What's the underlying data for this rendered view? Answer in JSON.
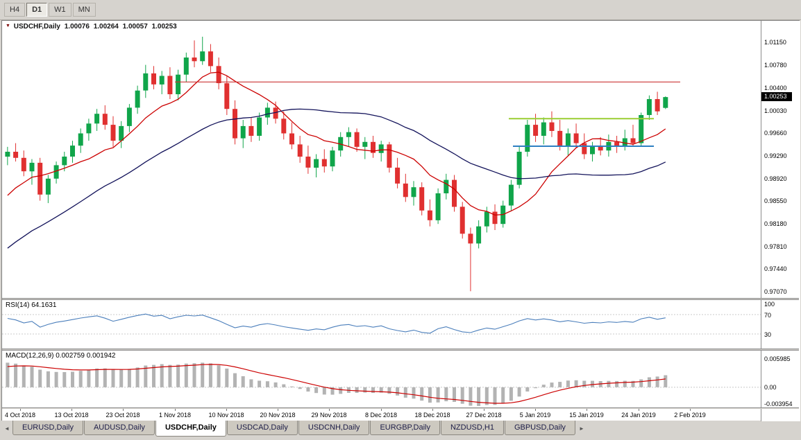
{
  "toolbar": {
    "timeframes": [
      {
        "label": "H4",
        "active": false
      },
      {
        "label": "D1",
        "active": true
      },
      {
        "label": "W1",
        "active": false
      },
      {
        "label": "MN",
        "active": false
      }
    ]
  },
  "chart": {
    "dropdown_icon": "▼",
    "symbol_label": "USDCHF,Daily",
    "open": "1.00076",
    "high": "1.00264",
    "low": "1.00057",
    "close": "1.00253",
    "price_badge": "1.00253"
  },
  "chart_data": {
    "type": "candlestick",
    "title": "USDCHF,Daily",
    "x_labels": [
      "4 Oct 2018",
      "13 Oct 2018",
      "23 Oct 2018",
      "1 Nov 2018",
      "10 Nov 2018",
      "20 Nov 2018",
      "29 Nov 2018",
      "8 Dec 2018",
      "18 Dec 2018",
      "27 Dec 2018",
      "5 Jan 2019",
      "15 Jan 2019",
      "24 Jan 2019",
      "2 Feb 2019"
    ],
    "y_tick_labels": [
      "1.01150",
      "1.00780",
      "1.00400",
      "1.00030",
      "0.99660",
      "0.99290",
      "0.98920",
      "0.98550",
      "0.98180",
      "0.97810",
      "0.97440",
      "0.97070"
    ],
    "price_range": [
      0.9697,
      1.015
    ],
    "pre_close": 0.9925,
    "candles": [
      [
        0.9928,
        0.9944,
        0.9914,
        0.9936
      ],
      [
        0.9936,
        0.995,
        0.992,
        0.9926
      ],
      [
        0.9926,
        0.9938,
        0.9896,
        0.9904
      ],
      [
        0.9904,
        0.9924,
        0.9882,
        0.9918
      ],
      [
        0.9918,
        0.9926,
        0.9856,
        0.9866
      ],
      [
        0.9866,
        0.9898,
        0.9852,
        0.9892
      ],
      [
        0.9892,
        0.992,
        0.9884,
        0.9914
      ],
      [
        0.9914,
        0.9936,
        0.9904,
        0.9928
      ],
      [
        0.9928,
        0.9954,
        0.9918,
        0.9946
      ],
      [
        0.9946,
        0.9974,
        0.9934,
        0.9966
      ],
      [
        0.9966,
        0.999,
        0.9954,
        0.9982
      ],
      [
        0.9982,
        1.0006,
        0.997,
        0.9998
      ],
      [
        0.9998,
        1.0012,
        0.9972,
        0.998
      ],
      [
        0.998,
        0.9994,
        0.9944,
        0.9954
      ],
      [
        0.9954,
        0.9986,
        0.9942,
        0.9978
      ],
      [
        0.9978,
        1.0014,
        0.9968,
        1.0008
      ],
      [
        1.0008,
        1.0044,
        0.9998,
        1.0036
      ],
      [
        1.0036,
        1.0078,
        1.0024,
        1.0064
      ],
      [
        1.0064,
        1.0076,
        1.0038,
        1.0046
      ],
      [
        1.0046,
        1.0068,
        1.003,
        1.006
      ],
      [
        1.006,
        1.0074,
        1.0022,
        1.003
      ],
      [
        1.003,
        1.007,
        1.002,
        1.0062
      ],
      [
        1.0062,
        1.0098,
        1.005,
        1.009
      ],
      [
        1.009,
        1.0118,
        1.0074,
        1.0084
      ],
      [
        1.0084,
        1.0124,
        1.0078,
        1.01
      ],
      [
        1.01,
        1.0112,
        1.0066,
        1.0076
      ],
      [
        1.0076,
        1.009,
        1.0038,
        1.0048
      ],
      [
        1.0048,
        1.006,
        0.9996,
        1.0006
      ],
      [
        1.0006,
        1.002,
        0.9948,
        0.9958
      ],
      [
        0.9958,
        0.9988,
        0.9942,
        0.9978
      ],
      [
        0.9978,
        0.9992,
        0.9952,
        0.9962
      ],
      [
        0.9962,
        1.0,
        0.9954,
        0.9992
      ],
      [
        0.9992,
        1.0016,
        0.998,
        1.0008
      ],
      [
        1.0008,
        1.0018,
        0.9982,
        0.999
      ],
      [
        0.999,
        1.0002,
        0.9956,
        0.9966
      ],
      [
        0.9966,
        0.9984,
        0.994,
        0.9948
      ],
      [
        0.9948,
        0.9962,
        0.9918,
        0.9928
      ],
      [
        0.9928,
        0.9946,
        0.99,
        0.991
      ],
      [
        0.991,
        0.9932,
        0.9894,
        0.9924
      ],
      [
        0.9924,
        0.994,
        0.9902,
        0.9912
      ],
      [
        0.9912,
        0.9944,
        0.9904,
        0.9938
      ],
      [
        0.9938,
        0.9968,
        0.9928,
        0.996
      ],
      [
        0.996,
        0.9976,
        0.9944,
        0.9968
      ],
      [
        0.9968,
        0.9974,
        0.9936,
        0.9944
      ],
      [
        0.9944,
        0.996,
        0.9924,
        0.9952
      ],
      [
        0.9952,
        0.9962,
        0.9926,
        0.9934
      ],
      [
        0.9934,
        0.9954,
        0.992,
        0.9948
      ],
      [
        0.9948,
        0.9952,
        0.9902,
        0.991
      ],
      [
        0.991,
        0.9926,
        0.9876,
        0.9884
      ],
      [
        0.9884,
        0.99,
        0.9854,
        0.9862
      ],
      [
        0.9862,
        0.9888,
        0.9848,
        0.9878
      ],
      [
        0.9878,
        0.9886,
        0.9832,
        0.984
      ],
      [
        0.984,
        0.9858,
        0.9814,
        0.9824
      ],
      [
        0.9824,
        0.9876,
        0.9818,
        0.9868
      ],
      [
        0.9868,
        0.99,
        0.9858,
        0.989
      ],
      [
        0.989,
        0.9898,
        0.9838,
        0.9846
      ],
      [
        0.9846,
        0.9854,
        0.9794,
        0.9802
      ],
      [
        0.9802,
        0.9812,
        0.9708,
        0.9786
      ],
      [
        0.9786,
        0.9824,
        0.9778,
        0.9814
      ],
      [
        0.9814,
        0.9846,
        0.9804,
        0.9838
      ],
      [
        0.9838,
        0.985,
        0.9808,
        0.9818
      ],
      [
        0.9818,
        0.9856,
        0.9812,
        0.9848
      ],
      [
        0.9848,
        0.989,
        0.984,
        0.9882
      ],
      [
        0.9882,
        0.9944,
        0.9876,
        0.9936
      ],
      [
        0.9936,
        0.9988,
        0.9928,
        0.998
      ],
      [
        0.998,
        0.9998,
        0.9952,
        0.9962
      ],
      [
        0.9962,
        0.9992,
        0.9948,
        0.9984
      ],
      [
        0.9984,
        1.0002,
        0.996,
        0.997
      ],
      [
        0.997,
        0.9988,
        0.9938,
        0.9946
      ],
      [
        0.9946,
        0.9974,
        0.993,
        0.9966
      ],
      [
        0.9966,
        0.9982,
        0.9942,
        0.995
      ],
      [
        0.995,
        0.9966,
        0.9924,
        0.9932
      ],
      [
        0.9932,
        0.9952,
        0.992,
        0.9944
      ],
      [
        0.9944,
        0.996,
        0.993,
        0.9938
      ],
      [
        0.9938,
        0.9964,
        0.9928,
        0.9952
      ],
      [
        0.9952,
        0.9962,
        0.9934,
        0.9946
      ],
      [
        0.9946,
        0.9972,
        0.9938,
        0.9958
      ],
      [
        0.9958,
        0.998,
        0.9944,
        0.995
      ],
      [
        0.995,
        1.0,
        0.9946,
        0.9996
      ],
      [
        0.9996,
        1.0028,
        0.9988,
        1.0022
      ],
      [
        1.0022,
        1.0034,
        0.9996,
        1.0002
      ],
      [
        1.00076,
        1.00264,
        1.00057,
        1.00253
      ]
    ],
    "overlays": [
      {
        "name": "sma-fast-line",
        "period": 10,
        "color": "#cc0000",
        "seed_from": 0.979,
        "seed_to": 0.991
      },
      {
        "name": "sma-slow-line",
        "period": 30,
        "color": "#12125a",
        "seed_from": 0.961,
        "seed_to": 0.9925
      }
    ],
    "hlines": [
      {
        "name": "resistance-hline",
        "price": 1.005,
        "x1": 0.228,
        "x2": 0.894,
        "color": "#cc3333",
        "width": 1.2
      },
      {
        "name": "minor-resistance-hline",
        "price": 0.999,
        "x1": 0.668,
        "x2": 0.859,
        "color": "#9acd32",
        "width": 2
      },
      {
        "name": "support-hline",
        "price": 0.9945,
        "x1": 0.673,
        "x2": 0.859,
        "color": "#2d7fc1",
        "width": 2
      }
    ],
    "colors": {
      "up": "#10a54a",
      "down": "#e03030",
      "macd_bar": "#b3b3b3",
      "macd_signal": "#cc0000",
      "rsi_line": "#4a7ebb",
      "grid": "#c8c8c8"
    },
    "rsi": {
      "label": "RSI(14)",
      "value": "64.1631",
      "period": 14,
      "levels": [
        70,
        30
      ],
      "axis_labels": [
        "100",
        "70",
        "30"
      ],
      "range": [
        0,
        100
      ],
      "seed_gain": 0.0009,
      "seed_loss": 0.0006
    },
    "macd": {
      "label": "MACD(12,26,9)",
      "value_main": "0.002759",
      "value_signal": "0.001942",
      "axis_labels": [
        "0.005985",
        "0.00",
        "-0.003954"
      ],
      "range": [
        -0.0043,
        0.0078
      ],
      "seed_ema12": 0.9896,
      "seed_ema26": 0.9843,
      "seed_signal": 0.0042
    }
  },
  "bottom_tabs": {
    "left_arrow": "◄",
    "right_arrow": "►",
    "tabs": [
      {
        "label": "EURUSD,Daily",
        "active": false
      },
      {
        "label": "AUDUSD,Daily",
        "active": false
      },
      {
        "label": "USDCHF,Daily",
        "active": true
      },
      {
        "label": "USDCAD,Daily",
        "active": false
      },
      {
        "label": "USDCNH,Daily",
        "active": false
      },
      {
        "label": "EURGBP,Daily",
        "active": false
      },
      {
        "label": "NZDUSD,H1",
        "active": false
      },
      {
        "label": "GBPUSD,Daily",
        "active": false
      }
    ]
  }
}
